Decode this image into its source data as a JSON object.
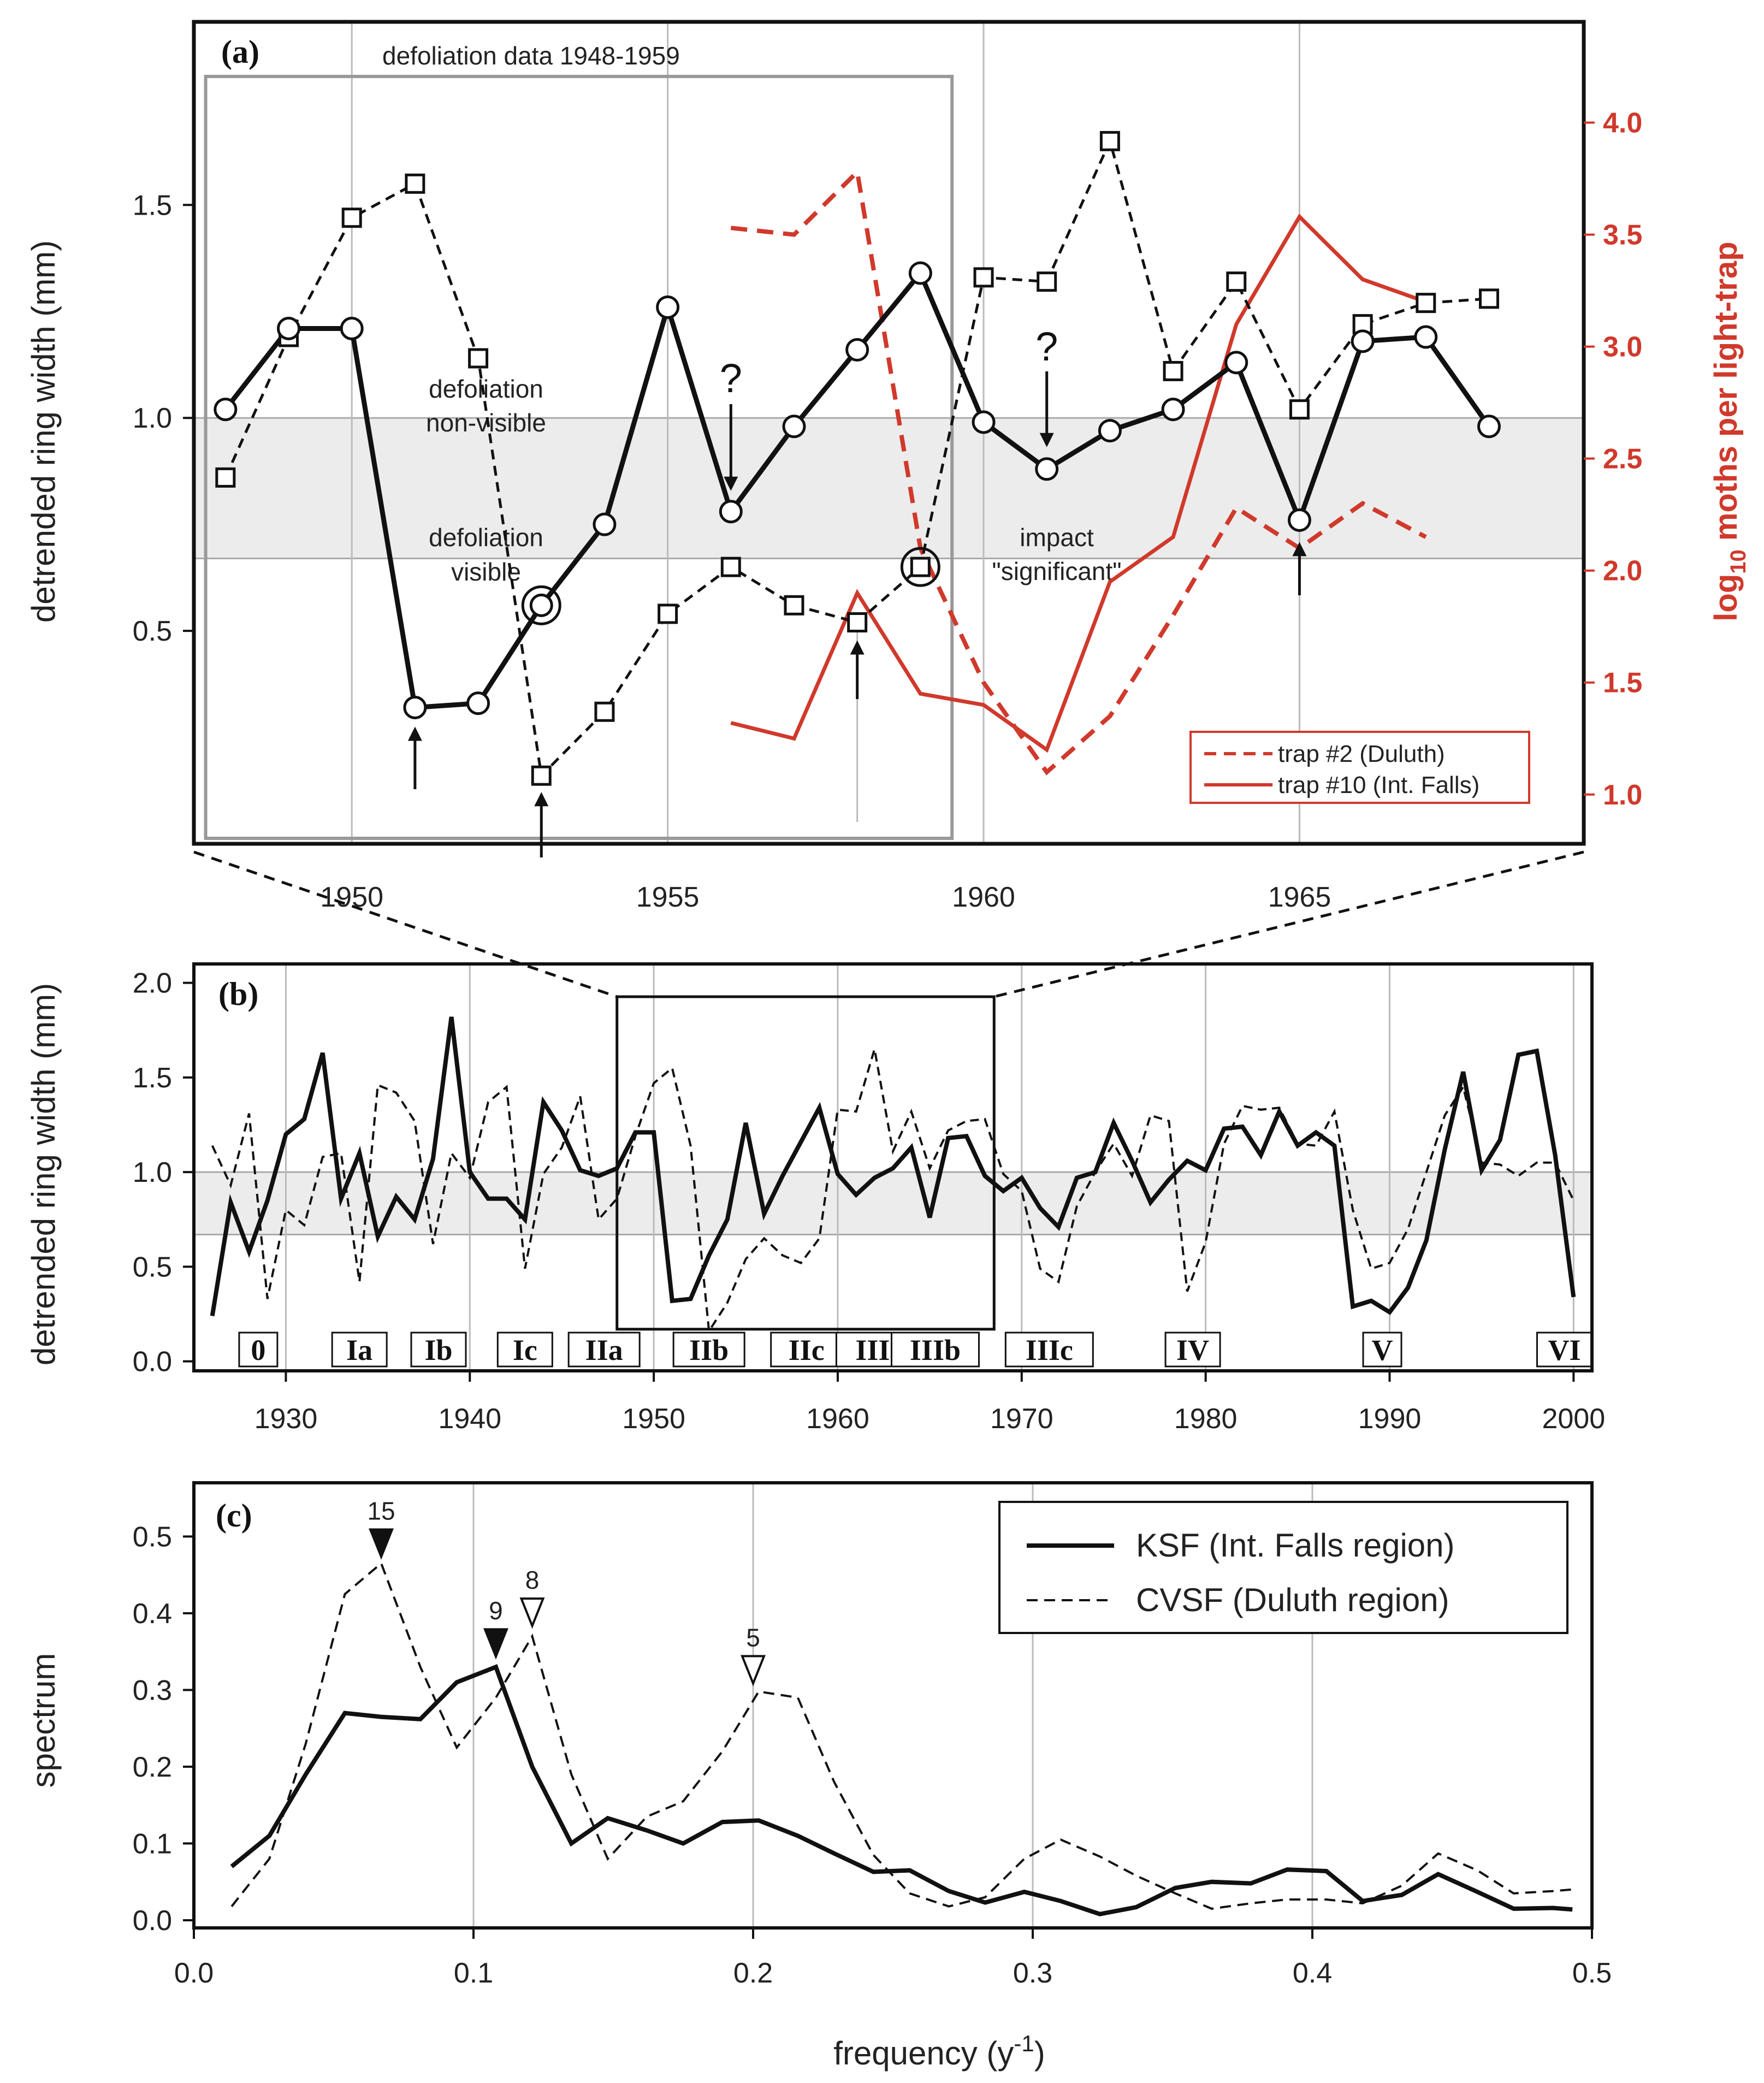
{
  "chart_data": [
    {
      "type": "line",
      "panel_label": "(a)",
      "title": "defoliation data 1948-1959",
      "xlabel": "",
      "ylabel": "detrended ring width (mm)",
      "ylabel_right": "moths per light-trap",
      "ylabel_right_prefix": "log",
      "ylabel_right_sub": "10",
      "xlim": [
        1947.5,
        1969.5
      ],
      "ylim": [
        0,
        1.93
      ],
      "ylim_right": [
        0.78,
        4.45
      ],
      "x_ticks": [
        1950,
        1955,
        1960,
        1965
      ],
      "x_tick_labels": [
        "1950",
        "1955",
        "1960",
        "1965"
      ],
      "y_ticks": [
        0.5,
        1.0,
        1.5
      ],
      "y_tick_labels": [
        "0.5",
        "1.0",
        "1.5"
      ],
      "y_right_ticks": [
        1.0,
        1.5,
        2.0,
        2.5,
        3.0,
        3.5,
        4.0
      ],
      "y_right_tick_labels": [
        "1.0",
        "1.5",
        "2.0",
        "2.5",
        "3.0",
        "3.5",
        "4.0"
      ],
      "shaded_band": [
        0.67,
        1.0
      ],
      "band_labels": [
        "defoliation",
        "non-visible",
        "defoliation",
        "visible"
      ],
      "impact_label": [
        "impact",
        "\"significant\""
      ],
      "question_mark": "?",
      "series": [
        {
          "name": "KSF (Int. Falls region)",
          "style": "solid-circle",
          "axis": "left",
          "x": [
            1948,
            1949,
            1950,
            1951,
            1952,
            1953,
            1954,
            1955,
            1956,
            1957,
            1958,
            1959,
            1960,
            1961,
            1962,
            1963,
            1964,
            1965,
            1966,
            1967,
            1968
          ],
          "values": [
            1.02,
            1.21,
            1.21,
            0.32,
            0.33,
            0.56,
            0.75,
            1.26,
            0.78,
            0.98,
            1.16,
            1.34,
            0.99,
            0.88,
            0.97,
            1.02,
            1.13,
            0.76,
            1.18,
            1.19,
            0.98
          ]
        },
        {
          "name": "CVSF (Duluth region)",
          "style": "dashed-square",
          "axis": "left",
          "x": [
            1948,
            1949,
            1950,
            1951,
            1952,
            1953,
            1954,
            1955,
            1956,
            1957,
            1958,
            1959,
            1960,
            1961,
            1962,
            1963,
            1964,
            1965,
            1966,
            1967,
            1968
          ],
          "values": [
            0.86,
            1.19,
            1.47,
            1.55,
            1.14,
            0.16,
            0.31,
            0.54,
            0.65,
            0.56,
            0.52,
            0.65,
            1.33,
            1.32,
            1.65,
            1.11,
            1.32,
            1.02,
            1.22,
            1.27,
            1.28
          ]
        },
        {
          "name": "trap #2  (Duluth)",
          "style": "red-dashed",
          "axis": "right",
          "x": [
            1956,
            1957,
            1958,
            1959,
            1960,
            1961,
            1962,
            1963,
            1964,
            1965,
            1966,
            1967
          ],
          "values": [
            3.53,
            3.5,
            3.78,
            2.1,
            1.5,
            1.1,
            1.35,
            1.8,
            2.28,
            2.1,
            2.3,
            2.15
          ]
        },
        {
          "name": "trap #10 (Int. Falls)",
          "style": "red-solid",
          "axis": "right",
          "x": [
            1956,
            1957,
            1958,
            1959,
            1960,
            1961,
            1962,
            1963,
            1964,
            1965,
            1966,
            1967
          ],
          "values": [
            1.32,
            1.25,
            1.9,
            1.45,
            1.4,
            1.2,
            1.95,
            2.15,
            3.1,
            3.58,
            3.3,
            3.2
          ]
        }
      ]
    },
    {
      "type": "line",
      "panel_label": "(b)",
      "xlabel": "",
      "ylabel": "detrended ring width (mm)",
      "xlim": [
        1925,
        2001
      ],
      "ylim": [
        -0.05,
        2.1
      ],
      "x_ticks": [
        1930,
        1940,
        1950,
        1960,
        1970,
        1980,
        1990,
        2000
      ],
      "x_tick_labels": [
        "1930",
        "1940",
        "1950",
        "1960",
        "1970",
        "1980",
        "1990",
        "2000"
      ],
      "y_ticks": [
        0.0,
        0.5,
        1.0,
        1.5,
        2.0
      ],
      "y_tick_labels": [
        "0.0",
        "0.5",
        "1.0",
        "1.5",
        "2.0"
      ],
      "shaded_band": [
        0.67,
        1.0
      ],
      "zoom_box": [
        1948,
        1968.5
      ],
      "outbreak_periods": [
        {
          "label": "0",
          "year": 1928.5
        },
        {
          "label": "Ia",
          "year": 1934
        },
        {
          "label": "Ib",
          "year": 1938.3
        },
        {
          "label": "Ic",
          "year": 1943
        },
        {
          "label": "IIa",
          "year": 1947.3
        },
        {
          "label": "IIb",
          "year": 1953
        },
        {
          "label": "IIc",
          "year": 1958.3
        },
        {
          "label": "IIIa",
          "year": 1962.3
        },
        {
          "label": "IIIb",
          "year": 1965.3
        },
        {
          "label": "IIIc",
          "year": 1971.5
        },
        {
          "label": "IV",
          "year": 1979.3
        },
        {
          "label": "V",
          "year": 1989.6
        },
        {
          "label": "VI",
          "year": 1999.5
        }
      ],
      "series": [
        {
          "name": "KSF (Int. Falls region)",
          "style": "solid",
          "x_start": 1926,
          "values": [
            0.24,
            0.84,
            0.58,
            0.85,
            1.2,
            1.28,
            1.63,
            0.86,
            1.1,
            0.66,
            0.87,
            0.75,
            1.07,
            1.82,
            1.0,
            0.86,
            0.86,
            0.75,
            1.37,
            1.22,
            1.01,
            0.98,
            1.02,
            1.21,
            1.21,
            0.32,
            0.33,
            0.56,
            0.75,
            1.26,
            0.78,
            0.98,
            1.16,
            1.34,
            0.99,
            0.88,
            0.97,
            1.02,
            1.13,
            0.76,
            1.18,
            1.19,
            0.98,
            0.9,
            0.97,
            0.81,
            0.71,
            0.97,
            1.0,
            1.26,
            1.06,
            0.84,
            0.96,
            1.06,
            1.01,
            1.23,
            1.24,
            1.09,
            1.32,
            1.14,
            1.21,
            1.14,
            0.29,
            0.32,
            0.26,
            0.39,
            0.64,
            1.12,
            1.53,
            1.01,
            1.17,
            1.62,
            1.64,
            1.09,
            0.34
          ]
        },
        {
          "name": "CVSF (Duluth region)",
          "style": "dashed",
          "x_start": 1926,
          "values": [
            1.14,
            0.93,
            1.31,
            0.33,
            0.8,
            0.72,
            1.08,
            1.1,
            0.42,
            1.46,
            1.42,
            1.27,
            0.62,
            1.1,
            0.97,
            1.37,
            1.45,
            0.49,
            0.99,
            1.13,
            1.4,
            0.75,
            0.86,
            1.19,
            1.47,
            1.55,
            1.14,
            0.16,
            0.31,
            0.54,
            0.65,
            0.56,
            0.52,
            0.65,
            1.33,
            1.32,
            1.65,
            1.11,
            1.32,
            1.02,
            1.22,
            1.27,
            1.28,
            0.99,
            0.9,
            0.49,
            0.42,
            0.82,
            1.0,
            1.15,
            0.98,
            1.3,
            1.27,
            0.37,
            0.63,
            1.15,
            1.35,
            1.33,
            1.34,
            1.15,
            1.14,
            1.32,
            0.8,
            0.49,
            0.52,
            0.7,
            1.0,
            1.3,
            1.45,
            1.05,
            1.04,
            0.98,
            1.05,
            1.05,
            0.85
          ]
        }
      ]
    },
    {
      "type": "line",
      "panel_label": "(c)",
      "xlabel": "frequency (y",
      "xlabel_sup": "-1",
      "xlabel_end": ")",
      "ylabel": "spectrum",
      "xlim": [
        0.0,
        0.5
      ],
      "ylim": [
        -0.01,
        0.57
      ],
      "x_ticks": [
        0.0,
        0.1,
        0.2,
        0.3,
        0.4,
        0.5
      ],
      "x_tick_labels": [
        "0.0",
        "0.1",
        "0.2",
        "0.3",
        "0.4",
        "0.5"
      ],
      "y_ticks": [
        0.0,
        0.1,
        0.2,
        0.3,
        0.4,
        0.5
      ],
      "y_tick_labels": [
        "0.0",
        "0.1",
        "0.2",
        "0.3",
        "0.4",
        "0.5"
      ],
      "peaks": [
        {
          "label": "15",
          "freq": 0.067,
          "value": 0.465,
          "filled": true
        },
        {
          "label": "9",
          "freq": 0.108,
          "value": 0.335,
          "filled": true
        },
        {
          "label": "8",
          "freq": 0.121,
          "value": 0.375,
          "filled": false
        },
        {
          "label": "5",
          "freq": 0.2,
          "value": 0.3,
          "filled": false
        }
      ],
      "series": [
        {
          "name": "KSF (Int. Falls region)",
          "style": "solid",
          "x": [
            0.0135,
            0.027,
            0.04,
            0.054,
            0.067,
            0.081,
            0.094,
            0.108,
            0.121,
            0.135,
            0.148,
            0.162,
            0.175,
            0.189,
            0.202,
            0.216,
            0.229,
            0.243,
            0.256,
            0.27,
            0.283,
            0.297,
            0.31,
            0.324,
            0.337,
            0.351,
            0.364,
            0.378,
            0.391,
            0.405,
            0.418,
            0.432,
            0.445,
            0.459,
            0.472,
            0.486,
            0.493
          ],
          "values": [
            0.07,
            0.11,
            0.19,
            0.27,
            0.265,
            0.262,
            0.31,
            0.33,
            0.2,
            0.1,
            0.133,
            0.117,
            0.1,
            0.128,
            0.13,
            0.11,
            0.087,
            0.063,
            0.065,
            0.038,
            0.023,
            0.037,
            0.025,
            0.008,
            0.017,
            0.042,
            0.05,
            0.048,
            0.066,
            0.064,
            0.025,
            0.033,
            0.06,
            0.037,
            0.015,
            0.016,
            0.014
          ]
        },
        {
          "name": "CVSF (Duluth region)",
          "style": "dashed",
          "x": [
            0.0135,
            0.027,
            0.04,
            0.054,
            0.067,
            0.081,
            0.094,
            0.108,
            0.121,
            0.135,
            0.148,
            0.162,
            0.175,
            0.189,
            0.202,
            0.216,
            0.229,
            0.243,
            0.256,
            0.27,
            0.283,
            0.297,
            0.31,
            0.324,
            0.337,
            0.351,
            0.364,
            0.378,
            0.391,
            0.405,
            0.418,
            0.432,
            0.445,
            0.459,
            0.472,
            0.486,
            0.493
          ],
          "values": [
            0.018,
            0.08,
            0.23,
            0.425,
            0.465,
            0.33,
            0.225,
            0.29,
            0.37,
            0.19,
            0.08,
            0.135,
            0.155,
            0.22,
            0.298,
            0.29,
            0.18,
            0.085,
            0.035,
            0.018,
            0.03,
            0.08,
            0.105,
            0.083,
            0.058,
            0.035,
            0.015,
            0.022,
            0.027,
            0.027,
            0.022,
            0.045,
            0.087,
            0.065,
            0.035,
            0.038,
            0.04
          ]
        }
      ]
    }
  ]
}
